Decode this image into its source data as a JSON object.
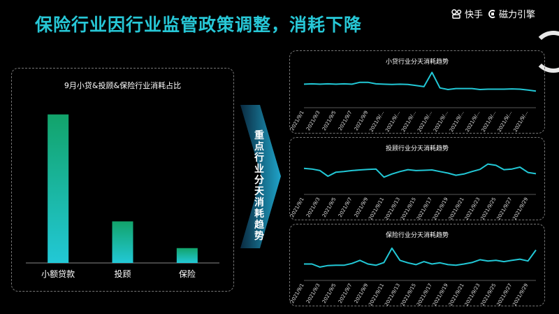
{
  "header": {
    "title": "保险行业因行业监管政策调整，消耗下降"
  },
  "brand": {
    "kuaishou": "快手",
    "cili": "磁力引擎"
  },
  "arrow_text": "重点行业分天消耗趋势",
  "chart_data": [
    {
      "type": "bar",
      "title": "9月小贷&投顾&保险行业消耗占比",
      "categories": [
        "小额贷款",
        "投顾",
        "保险"
      ],
      "values": [
        100,
        28,
        10
      ],
      "ylim": [
        0,
        105
      ],
      "grid": false,
      "colors": {
        "top": "#12a36a",
        "bottom": "#22c8d6"
      }
    },
    {
      "type": "line",
      "title": "小贷行业分天消耗趋势",
      "x": [
        "2021/9/1",
        "2021/9/2",
        "2021/9/3",
        "2021/9/4",
        "2021/9/5",
        "2021/9/6",
        "2021/9/7",
        "2021/9/8",
        "2021/9/9",
        "2021/9/10",
        "2021/9/11",
        "2021/9/12",
        "2021/9/13",
        "2021/9/14",
        "2021/9/15",
        "2021/9/16",
        "2021/9/17",
        "2021/9/18",
        "2021/9/19",
        "2021/9/20",
        "2021/9/21",
        "2021/9/22",
        "2021/9/23",
        "2021/9/24",
        "2021/9/25",
        "2021/9/26",
        "2021/9/27",
        "2021/9/28",
        "2021/9/29",
        "2021/9/30"
      ],
      "xticks": [
        "2021/9/1",
        "2021/9/3",
        "2021/9/5",
        "2021/9/7",
        "2021/9/9",
        "2021/9/...",
        "2021/9/...",
        "2021/9/...",
        "2021/9/...",
        "2021/9/...",
        "2021/9/...",
        "2021/9/...",
        "2021/9/...",
        "2021/9/...",
        "2021/9/..."
      ],
      "values": [
        62,
        63,
        62,
        63,
        62,
        63,
        62,
        68,
        68,
        63,
        62,
        61,
        62,
        61,
        58,
        54,
        100,
        50,
        45,
        48,
        48,
        48,
        45,
        46,
        46,
        46,
        47,
        46,
        43,
        40
      ],
      "ylim": [
        0,
        110
      ],
      "color": "#22c8d6"
    },
    {
      "type": "line",
      "title": "投顾行业分天消耗趋势",
      "x": [
        "2021/9/1",
        "2021/9/2",
        "2021/9/3",
        "2021/9/4",
        "2021/9/5",
        "2021/9/6",
        "2021/9/7",
        "2021/9/8",
        "2021/9/9",
        "2021/9/10",
        "2021/9/11",
        "2021/9/12",
        "2021/9/13",
        "2021/9/14",
        "2021/9/15",
        "2021/9/16",
        "2021/9/17",
        "2021/9/18",
        "2021/9/19",
        "2021/9/20",
        "2021/9/21",
        "2021/9/22",
        "2021/9/23",
        "2021/9/24",
        "2021/9/25",
        "2021/9/26",
        "2021/9/27",
        "2021/9/28",
        "2021/9/29",
        "2021/9/30"
      ],
      "xticks": [
        "2021/9/1",
        "2021/9/3",
        "2021/9/5",
        "2021/9/7",
        "2021/9/9",
        "2021/9/11",
        "2021/9/13",
        "2021/9/15",
        "2021/9/17",
        "2021/9/19",
        "2021/9/21",
        "2021/9/23",
        "2021/9/25",
        "2021/9/27",
        "2021/9/29"
      ],
      "values": [
        70,
        68,
        63,
        45,
        58,
        60,
        63,
        65,
        67,
        68,
        42,
        52,
        60,
        66,
        63,
        64,
        65,
        60,
        55,
        48,
        52,
        60,
        67,
        84,
        80,
        66,
        68,
        74,
        57,
        53
      ],
      "ylim": [
        0,
        110
      ],
      "color": "#22c8d6"
    },
    {
      "type": "line",
      "title": "保险行业分天消耗趋势",
      "x": [
        "2021/9/1",
        "2021/9/2",
        "2021/9/3",
        "2021/9/4",
        "2021/9/5",
        "2021/9/6",
        "2021/9/7",
        "2021/9/8",
        "2021/9/9",
        "2021/9/10",
        "2021/9/11",
        "2021/9/12",
        "2021/9/13",
        "2021/9/14",
        "2021/9/15",
        "2021/9/16",
        "2021/9/17",
        "2021/9/18",
        "2021/9/19",
        "2021/9/20",
        "2021/9/21",
        "2021/9/22",
        "2021/9/23",
        "2021/9/24",
        "2021/9/25",
        "2021/9/26",
        "2021/9/27",
        "2021/9/28",
        "2021/9/29",
        "2021/9/30"
      ],
      "xticks": [
        "2021/9/1",
        "2021/9/3",
        "2021/9/5",
        "2021/9/7",
        "2021/9/9",
        "2021/9/11",
        "2021/9/13",
        "2021/9/15",
        "2021/9/17",
        "2021/9/19",
        "2021/9/21",
        "2021/9/23",
        "2021/9/25",
        "2021/9/27",
        "2021/9/29"
      ],
      "values": [
        40,
        40,
        30,
        35,
        36,
        36,
        42,
        52,
        40,
        36,
        45,
        92,
        52,
        44,
        38,
        48,
        40,
        44,
        38,
        36,
        40,
        45,
        54,
        50,
        52,
        48,
        52,
        56,
        50,
        86
      ],
      "ylim": [
        0,
        110
      ],
      "color": "#22c8d6"
    }
  ]
}
